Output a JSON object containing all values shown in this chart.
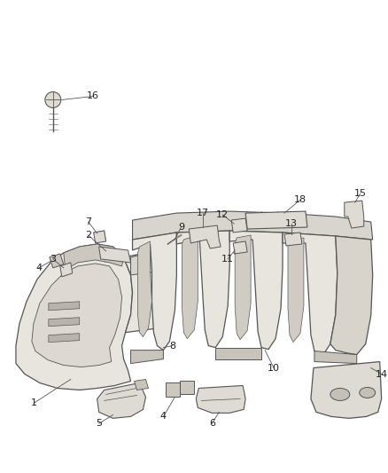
{
  "bg_color": "#ffffff",
  "line_color": "#555555",
  "label_color": "#222222",
  "figsize": [
    4.38,
    5.33
  ],
  "dpi": 100,
  "panel_color": "#e8e4de",
  "panel_edge": "#555555",
  "part_color": "#dedad4"
}
